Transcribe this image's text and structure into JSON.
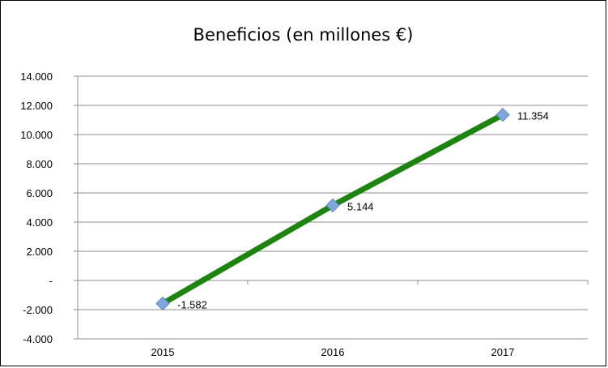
{
  "chart_data": {
    "type": "line",
    "title": "Beneficios (en millones €)",
    "xlabel": "",
    "ylabel": "",
    "categories": [
      "2015",
      "2016",
      "2017"
    ],
    "series": [
      {
        "values": [
          -1582,
          5144,
          11354
        ],
        "data_labels": [
          "-1.582",
          "5.144",
          "11.354"
        ],
        "color": "#1E8410",
        "marker_color": "#7FA7DD"
      }
    ],
    "ylim": [
      -4000,
      14000
    ],
    "y_ticks": [
      {
        "value": 14000,
        "label": "14.000"
      },
      {
        "value": 12000,
        "label": "12.000"
      },
      {
        "value": 10000,
        "label": "10.000"
      },
      {
        "value": 8000,
        "label": "8.000"
      },
      {
        "value": 6000,
        "label": "6.000"
      },
      {
        "value": 4000,
        "label": "4.000"
      },
      {
        "value": 2000,
        "label": "2.000"
      },
      {
        "value": 0,
        "label": "-"
      },
      {
        "value": -2000,
        "label": "-2.000"
      },
      {
        "value": -4000,
        "label": "-4.000"
      }
    ],
    "grid": true,
    "legend": "none"
  }
}
